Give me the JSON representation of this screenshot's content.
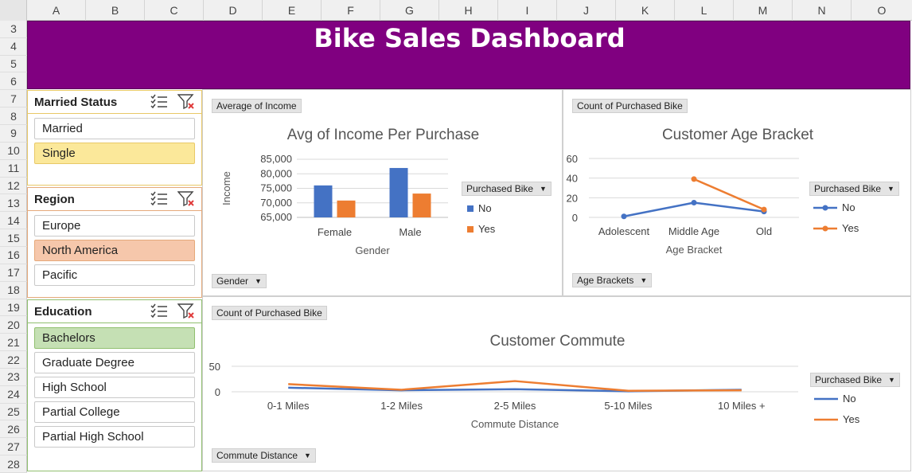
{
  "spreadsheet": {
    "columns": [
      "A",
      "B",
      "C",
      "D",
      "E",
      "F",
      "G",
      "H",
      "I",
      "J",
      "K",
      "L",
      "M",
      "N",
      "O"
    ],
    "rows": [
      "3",
      "4",
      "5",
      "6",
      "7",
      "8",
      "9",
      "10",
      "11",
      "12",
      "13",
      "14",
      "15",
      "16",
      "17",
      "18",
      "19",
      "20",
      "21",
      "22",
      "23",
      "24",
      "25",
      "26",
      "27",
      "28"
    ]
  },
  "dashboard": {
    "title": "Bike Sales Dashboard",
    "banner_color": "#800080"
  },
  "slicers": [
    {
      "title": "Married Status",
      "items": [
        "Married",
        "Single"
      ],
      "selected": "Single",
      "selected_color": "#fbe89a",
      "border_color": "#e8c867"
    },
    {
      "title": "Region",
      "items": [
        "Europe",
        "North America",
        "Pacific"
      ],
      "selected": "North America",
      "selected_color": "#f6c7ab",
      "border_color": "#e5a97a"
    },
    {
      "title": "Education",
      "items": [
        "Bachelors",
        "Graduate Degree",
        "High School",
        "Partial College",
        "Partial High School"
      ],
      "selected": "Bachelors",
      "selected_color": "#c5e0b4",
      "border_color": "#90bf6f"
    }
  ],
  "panels": {
    "income": {
      "value_button": "Average of Income",
      "axis_button": "Gender",
      "legend_button": "Purchased Bike",
      "legend": [
        "No",
        "Yes"
      ]
    },
    "age": {
      "value_button": "Count of Purchased Bike",
      "axis_button": "Age Brackets",
      "legend_button": "Purchased Bike",
      "legend": [
        "No",
        "Yes"
      ]
    },
    "commute": {
      "value_button": "Count of Purchased Bike",
      "axis_button": "Commute Distance",
      "legend_button": "Purchased Bike",
      "legend": [
        "No",
        "Yes"
      ]
    }
  },
  "colors": {
    "no": "#4472c4",
    "yes": "#ed7d31"
  },
  "chart_data": [
    {
      "type": "bar",
      "title": "Avg of Income Per Purchase",
      "xlabel": "Gender",
      "ylabel": "Income",
      "categories": [
        "Female",
        "Male"
      ],
      "ylim": [
        65000,
        85000
      ],
      "yticks": [
        65000,
        70000,
        75000,
        80000,
        85000
      ],
      "ytick_labels": [
        "65,000",
        "70,000",
        "75,000",
        "80,000",
        "85,000"
      ],
      "series": [
        {
          "name": "No",
          "values": [
            76000,
            82000
          ]
        },
        {
          "name": "Yes",
          "values": [
            70800,
            73200
          ]
        }
      ]
    },
    {
      "type": "line",
      "title": "Customer Age Bracket",
      "xlabel": "Age Bracket",
      "ylabel": "",
      "categories": [
        "Adolescent",
        "Middle Age",
        "Old"
      ],
      "ylim": [
        0,
        60
      ],
      "yticks": [
        0,
        20,
        40,
        60
      ],
      "ytick_labels": [
        "0",
        "20",
        "40",
        "60"
      ],
      "series": [
        {
          "name": "No",
          "values": [
            1,
            15,
            6
          ]
        },
        {
          "name": "Yes",
          "values": [
            null,
            39,
            8
          ]
        }
      ]
    },
    {
      "type": "line",
      "title": "Customer Commute",
      "xlabel": "Commute Distance",
      "ylabel": "",
      "categories": [
        "0-1 Miles",
        "1-2 Miles",
        "2-5 Miles",
        "5-10 Miles",
        "10 Miles +"
      ],
      "ylim": [
        0,
        50
      ],
      "yticks": [
        0,
        50
      ],
      "ytick_labels": [
        "0",
        "50"
      ],
      "series": [
        {
          "name": "No",
          "values": [
            8,
            3,
            5,
            1,
            4
          ]
        },
        {
          "name": "Yes",
          "values": [
            15,
            4,
            21,
            2,
            3
          ]
        }
      ]
    }
  ]
}
